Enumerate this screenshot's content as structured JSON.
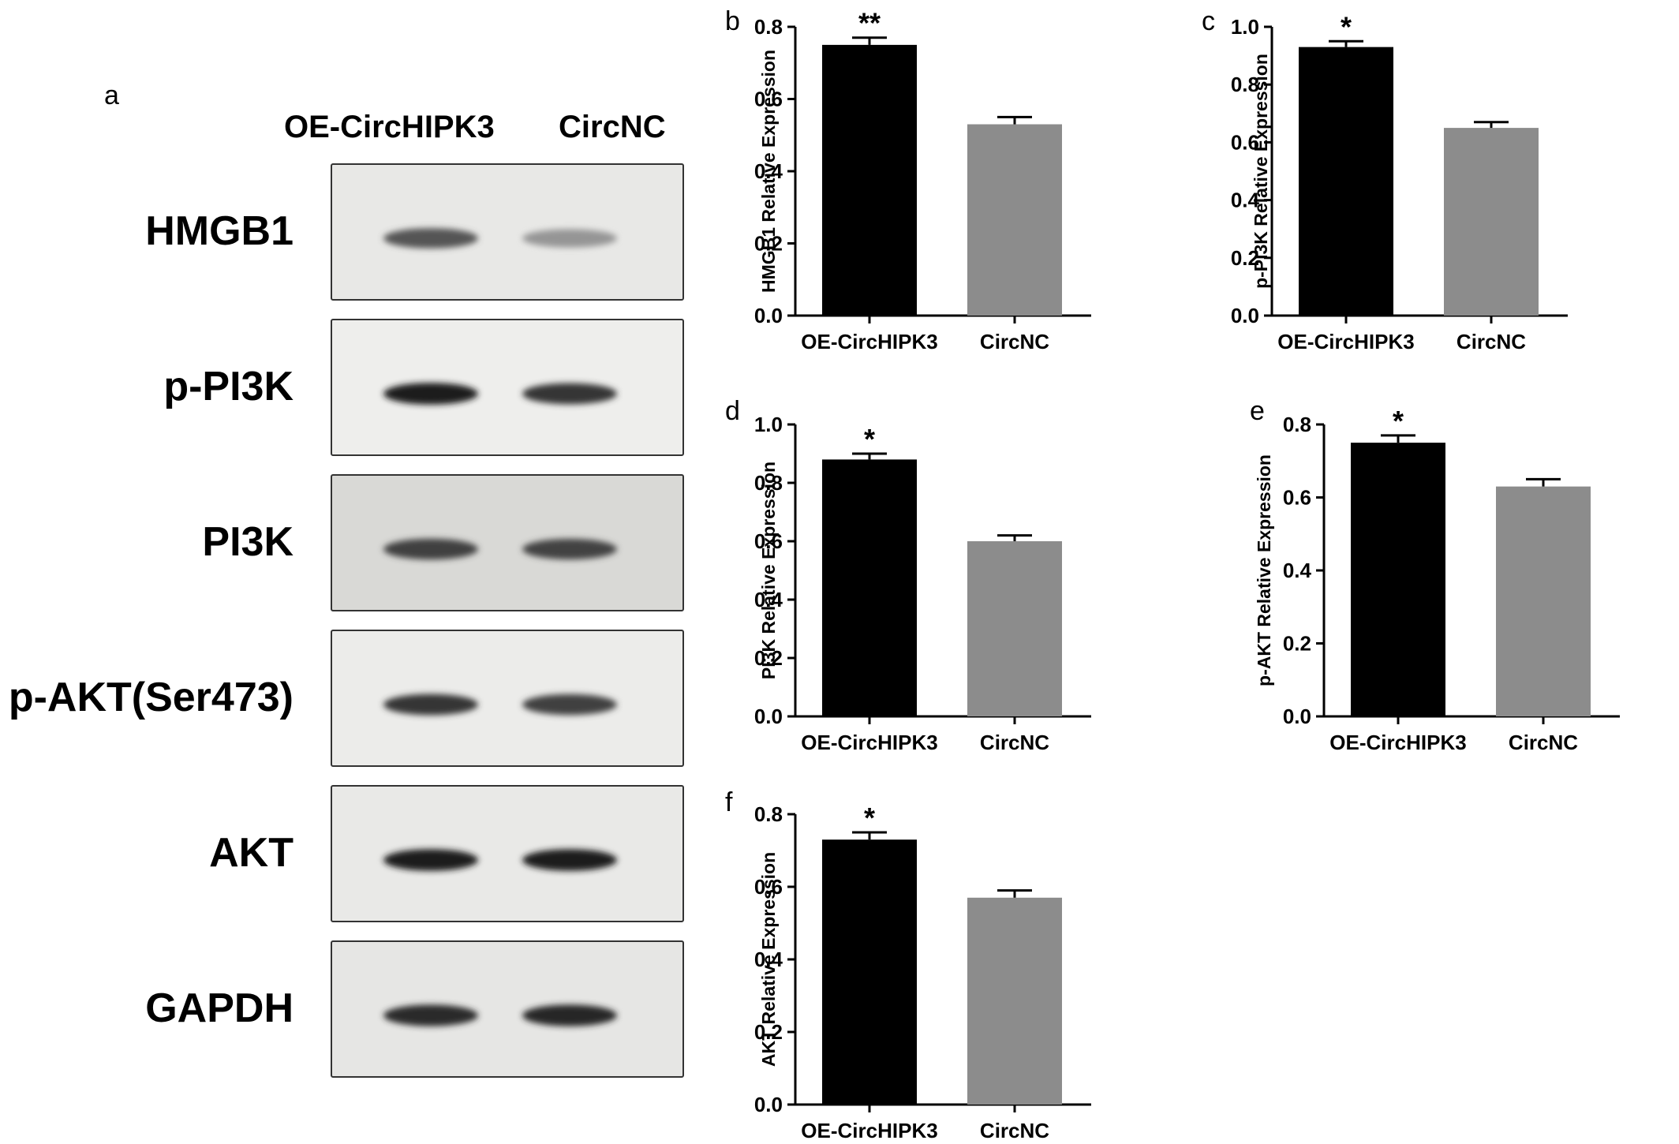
{
  "panel_a": {
    "letter": "a",
    "lanes": [
      "OE-CircHIPK3",
      "CircNC"
    ],
    "blots": [
      {
        "label": "HMGB1",
        "band_intensity": [
          0.7,
          0.4
        ],
        "background": "#e8e8e6"
      },
      {
        "label": "p-PI3K",
        "band_intensity": [
          0.95,
          0.85
        ],
        "background": "#eeeeec"
      },
      {
        "label": "PI3K",
        "band_intensity": [
          0.8,
          0.78
        ],
        "background": "#d9d9d6"
      },
      {
        "label": "p-AKT(Ser473)",
        "band_intensity": [
          0.85,
          0.8
        ],
        "background": "#ececea"
      },
      {
        "label": "AKT",
        "band_intensity": [
          0.95,
          0.95
        ],
        "background": "#e9e9e7"
      },
      {
        "label": "GAPDH",
        "band_intensity": [
          0.9,
          0.92
        ],
        "background": "#e6e6e4"
      }
    ]
  },
  "chart_data": [
    {
      "panel": "b",
      "type": "bar",
      "categories": [
        "OE-CircHIPK3",
        "CircNC"
      ],
      "values": [
        0.75,
        0.53
      ],
      "errors": [
        0.02,
        0.02
      ],
      "significance": [
        "**",
        ""
      ],
      "ylabel": "HMGB1 Relative Expression",
      "ylim": [
        0,
        0.8
      ],
      "yticks": [
        "0.0",
        "0.2",
        "0.4",
        "0.6",
        "0.8"
      ],
      "colors": [
        "#000000",
        "#8c8c8c"
      ]
    },
    {
      "panel": "c",
      "type": "bar",
      "categories": [
        "OE-CircHIPK3",
        "CircNC"
      ],
      "values": [
        0.93,
        0.65
      ],
      "errors": [
        0.02,
        0.02
      ],
      "significance": [
        "*",
        ""
      ],
      "ylabel": "p-PI3K Relative Expression",
      "ylim": [
        0,
        1.0
      ],
      "yticks": [
        "0.0",
        "0.2",
        "0.4",
        "0.6",
        "0.8",
        "1.0"
      ],
      "colors": [
        "#000000",
        "#8c8c8c"
      ]
    },
    {
      "panel": "d",
      "type": "bar",
      "categories": [
        "OE-CircHIPK3",
        "CircNC"
      ],
      "values": [
        0.88,
        0.6
      ],
      "errors": [
        0.02,
        0.02
      ],
      "significance": [
        "*",
        ""
      ],
      "ylabel": "PI3K Relative Expression",
      "ylim": [
        0,
        1.0
      ],
      "yticks": [
        "0.0",
        "0.2",
        "0.4",
        "0.6",
        "0.8",
        "1.0"
      ],
      "colors": [
        "#000000",
        "#8c8c8c"
      ]
    },
    {
      "panel": "e",
      "type": "bar",
      "categories": [
        "OE-CircHIPK3",
        "CircNC"
      ],
      "values": [
        0.75,
        0.63
      ],
      "errors": [
        0.02,
        0.02
      ],
      "significance": [
        "*",
        ""
      ],
      "ylabel": "p-AKT Relative Expression",
      "ylim": [
        0,
        0.8
      ],
      "yticks": [
        "0.0",
        "0.2",
        "0.4",
        "0.6",
        "0.8"
      ],
      "colors": [
        "#000000",
        "#8c8c8c"
      ]
    },
    {
      "panel": "f",
      "type": "bar",
      "categories": [
        "OE-CircHIPK3",
        "CircNC"
      ],
      "values": [
        0.73,
        0.57
      ],
      "errors": [
        0.02,
        0.02
      ],
      "significance": [
        "*",
        ""
      ],
      "ylabel": "AKT Relative Expression",
      "ylim": [
        0,
        0.8
      ],
      "yticks": [
        "0.0",
        "0.2",
        "0.4",
        "0.6",
        "0.8"
      ],
      "colors": [
        "#000000",
        "#8c8c8c"
      ]
    }
  ]
}
